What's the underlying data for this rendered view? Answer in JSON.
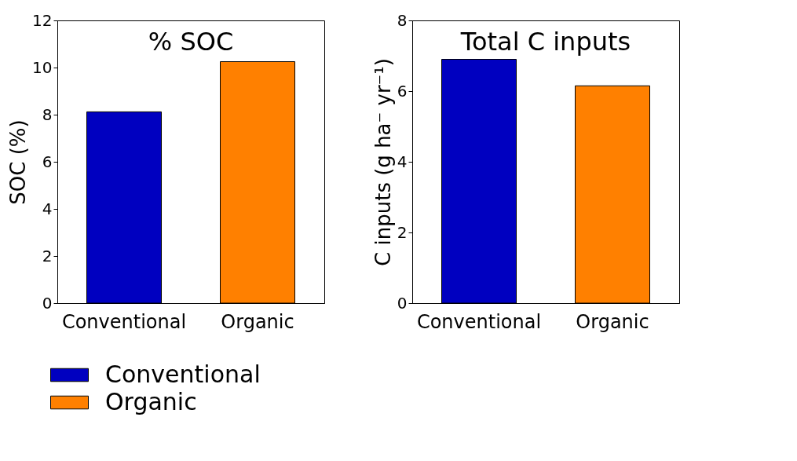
{
  "chart_data": [
    {
      "type": "bar",
      "title": "% SOC",
      "ylabel": "SOC (%)",
      "categories": [
        "Conventional",
        "Organic"
      ],
      "ylim": [
        0,
        12
      ],
      "yticks": [
        0,
        2,
        4,
        6,
        8,
        10,
        12
      ],
      "grid": false,
      "legend": "bottom",
      "series": [
        {
          "name": "Conventional",
          "color": "#0000c0",
          "values": [
            8.12,
            null
          ]
        },
        {
          "name": "Organic",
          "color": "#ff8000",
          "values": [
            null,
            10.25
          ]
        }
      ]
    },
    {
      "type": "bar",
      "title": "Total C inputs",
      "ylabel": "C inputs (g ha⁻ yr⁻¹)",
      "categories": [
        "Conventional",
        "Organic"
      ],
      "ylim": [
        0,
        8
      ],
      "yticks": [
        0,
        2,
        4,
        6,
        8
      ],
      "grid": false,
      "series": [
        {
          "color": "#0000c0",
          "values": [
            6.9,
            null
          ]
        },
        {
          "color": "#ff8000",
          "values": [
            null,
            6.15
          ]
        }
      ]
    }
  ]
}
